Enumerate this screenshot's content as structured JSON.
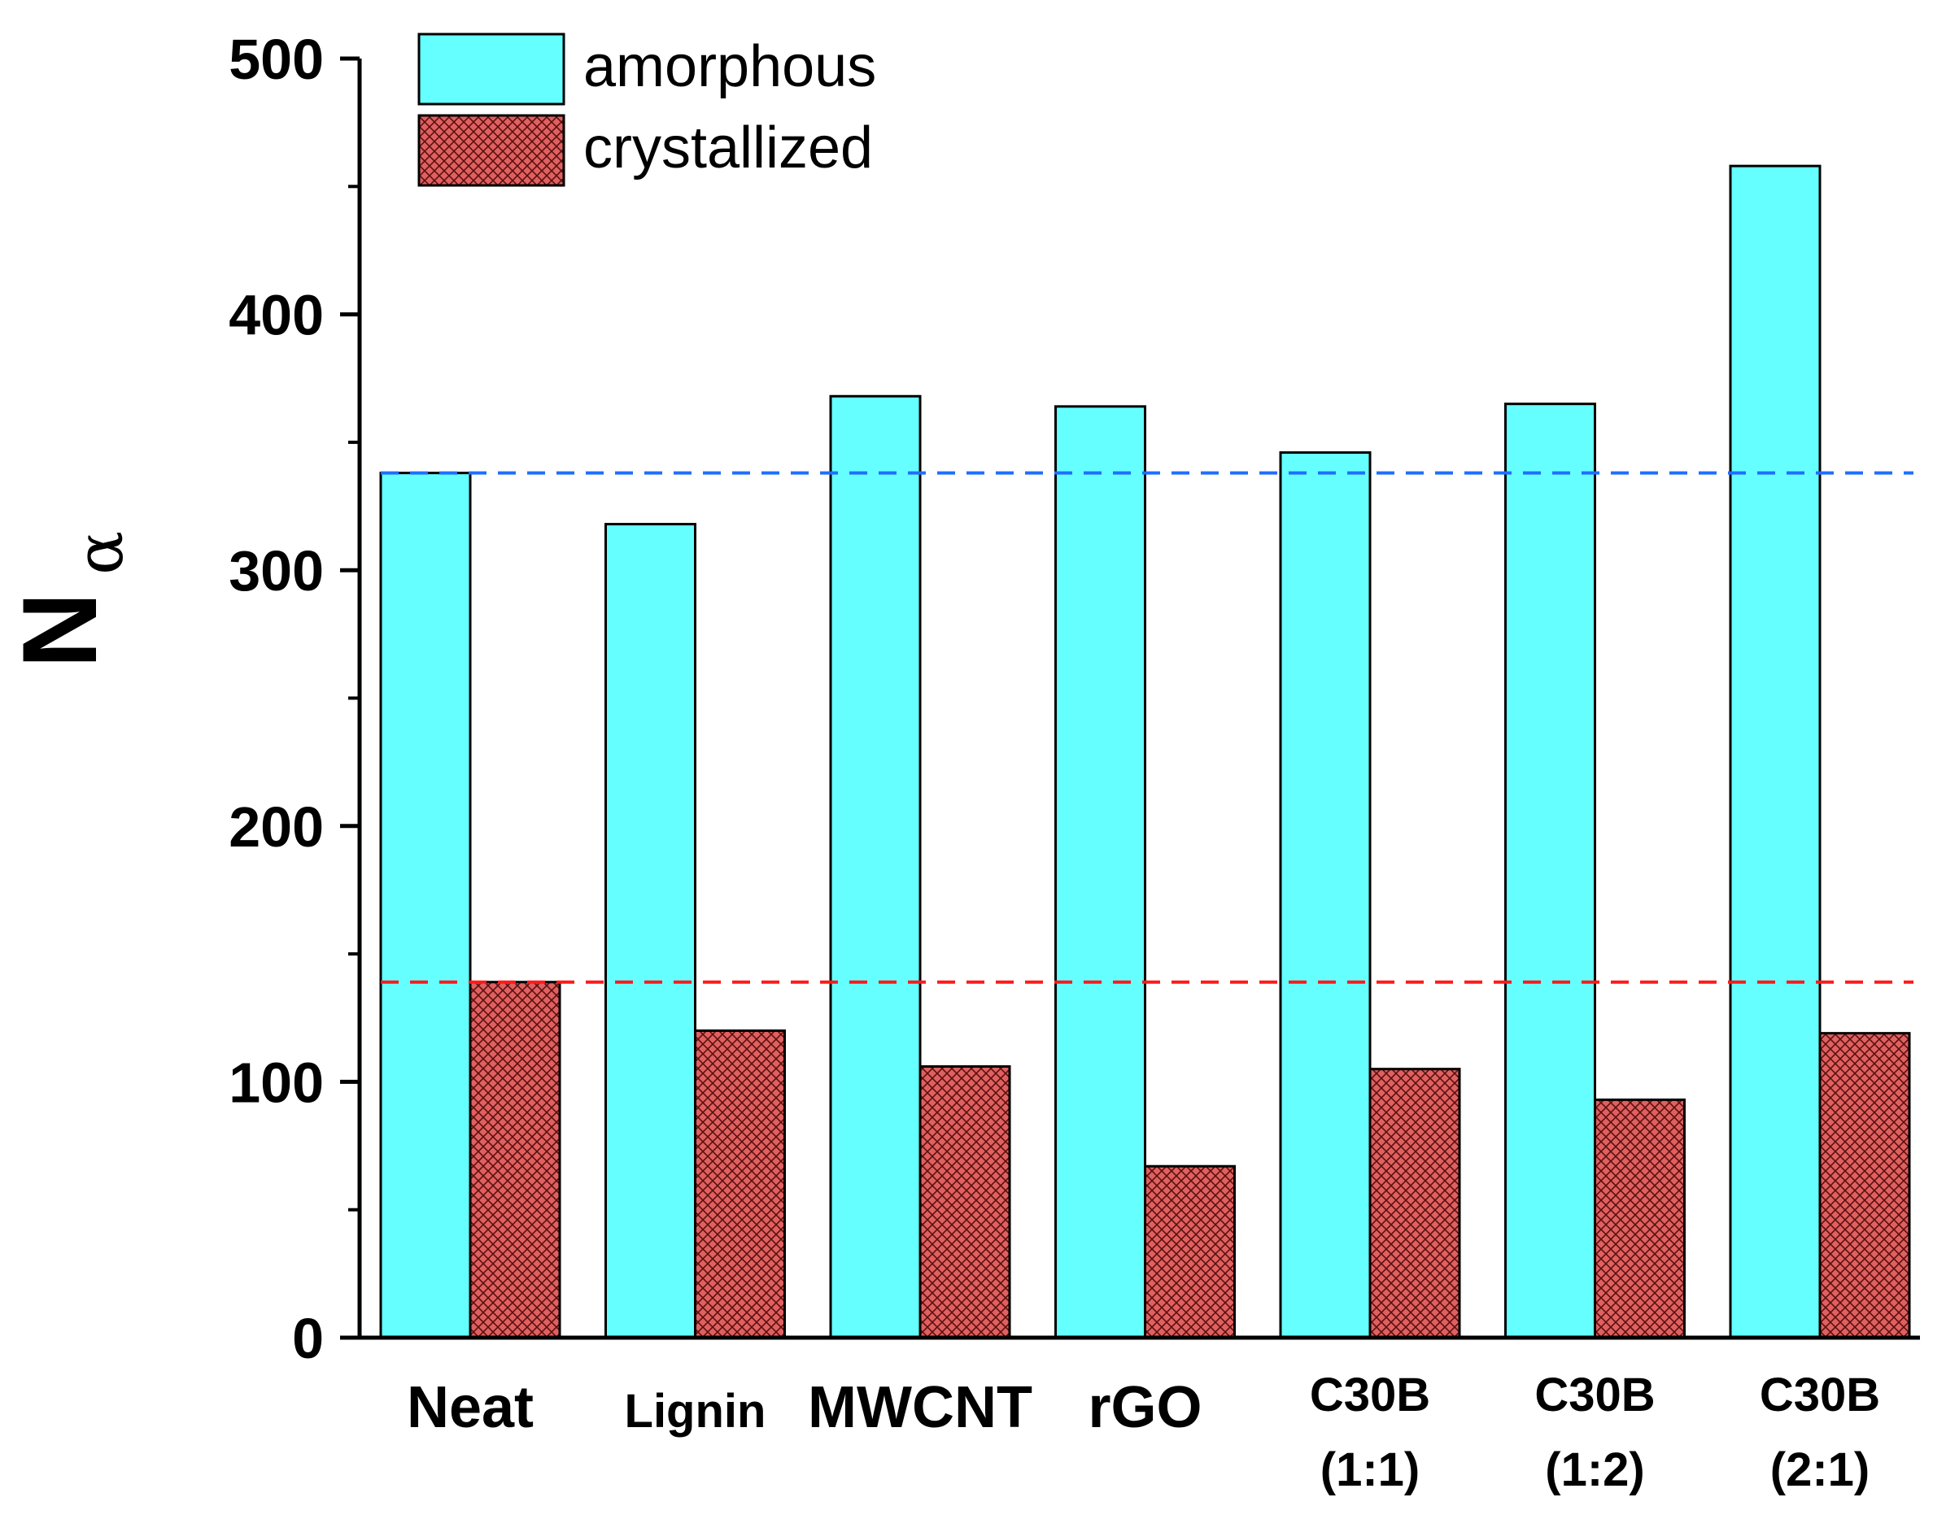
{
  "chart_data": {
    "type": "bar",
    "categories": [
      [
        "Neat"
      ],
      [
        "Lignin"
      ],
      [
        "MWCNT"
      ],
      [
        "rGO"
      ],
      [
        "C30B",
        "(1:1)"
      ],
      [
        "C30B",
        "(1:2)"
      ],
      [
        "C30B",
        "(2:1)"
      ]
    ],
    "series": [
      {
        "name": "amorphous",
        "values": [
          338,
          318,
          368,
          364,
          346,
          365,
          458
        ],
        "color": "#66ffff",
        "pattern": "solid"
      },
      {
        "name": "crystallized",
        "values": [
          139,
          120,
          106,
          67,
          105,
          93,
          119
        ],
        "color": "#e06060",
        "pattern": "crosshatch"
      }
    ],
    "reference_lines": [
      {
        "value": 338,
        "color": "#1f6fff",
        "style": "dashed"
      },
      {
        "value": 139,
        "color": "#ff1a1a",
        "style": "dashed"
      }
    ],
    "ylabel": {
      "main": "N",
      "subscript": "α"
    },
    "xlabel": "",
    "title": "",
    "ylim": [
      0,
      500
    ],
    "yticks": [
      0,
      100,
      200,
      300,
      400,
      500
    ],
    "grid": false,
    "legend_position": "top-left"
  }
}
